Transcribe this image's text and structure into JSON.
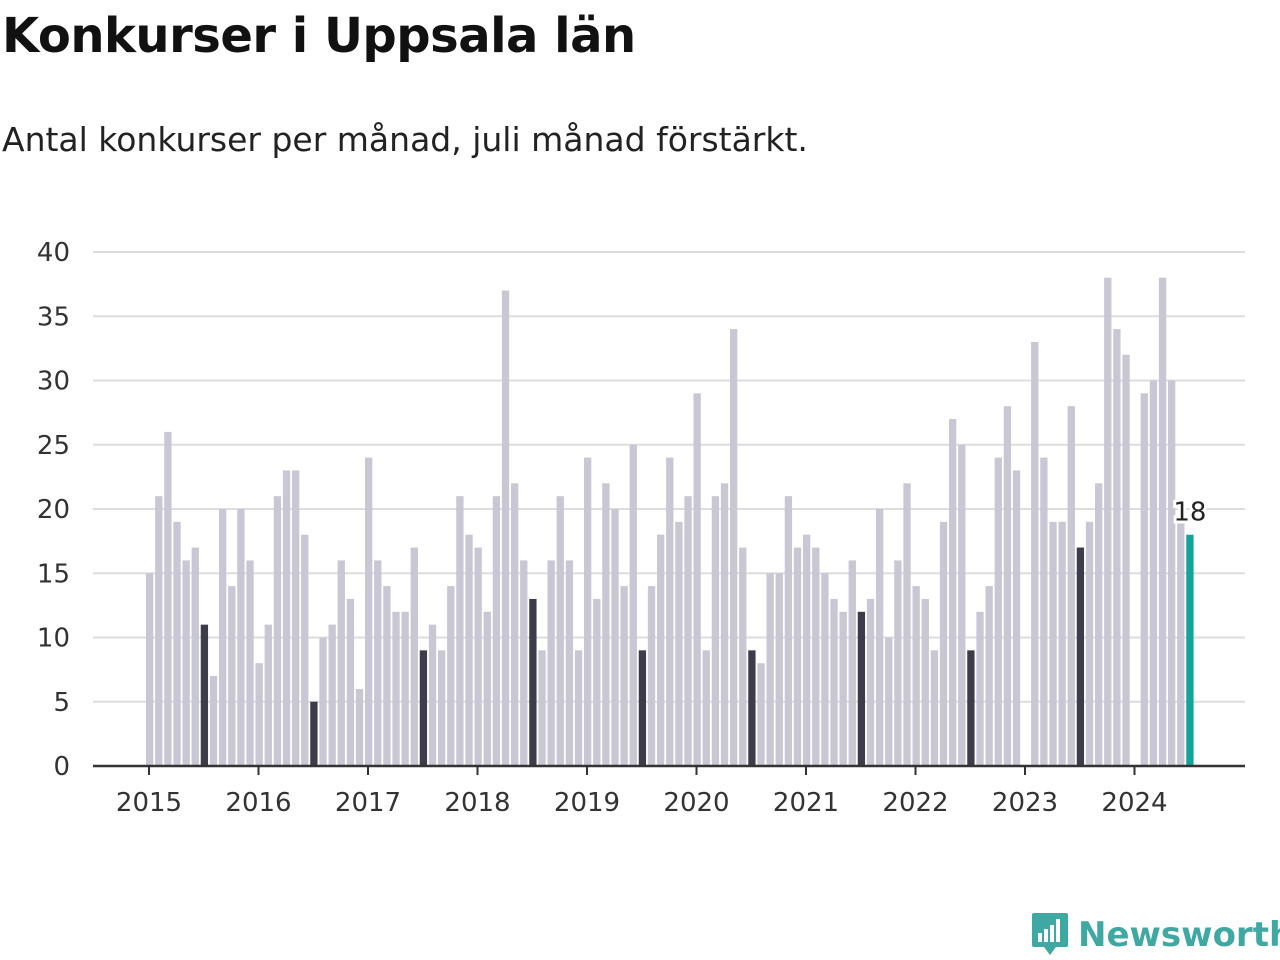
{
  "chart_data": {
    "type": "bar",
    "title": "Konkurser i Uppsala län",
    "subtitle": "Antal konkurser per månad, juli månad förstärkt.",
    "ylim": [
      0,
      40
    ],
    "yticks": [
      0,
      5,
      10,
      15,
      20,
      25,
      30,
      35,
      40
    ],
    "xticks": [
      "2015",
      "2016",
      "2017",
      "2018",
      "2019",
      "2020",
      "2021",
      "2022",
      "2023",
      "2024"
    ],
    "start": "2015-01",
    "grid": true,
    "highlight_month": "juli",
    "colors": {
      "default": "#c8c7d3",
      "july": "#3d3c4a",
      "latest": "#12a39a",
      "grid": "#dddddd",
      "axis": "#333333"
    },
    "values": [
      15,
      21,
      26,
      19,
      16,
      17,
      11,
      7,
      20,
      14,
      20,
      16,
      8,
      11,
      21,
      23,
      23,
      18,
      5,
      10,
      11,
      16,
      13,
      6,
      24,
      16,
      14,
      12,
      12,
      17,
      9,
      11,
      9,
      14,
      21,
      18,
      17,
      12,
      21,
      37,
      22,
      16,
      13,
      9,
      16,
      21,
      16,
      9,
      24,
      13,
      22,
      20,
      14,
      25,
      9,
      14,
      18,
      24,
      19,
      21,
      29,
      9,
      21,
      22,
      34,
      17,
      9,
      8,
      15,
      15,
      21,
      17,
      18,
      17,
      15,
      13,
      12,
      16,
      12,
      13,
      20,
      10,
      16,
      22,
      14,
      13,
      9,
      19,
      27,
      25,
      9,
      12,
      14,
      24,
      28,
      23,
      0,
      33,
      24,
      19,
      19,
      28,
      17,
      19,
      22,
      38,
      34,
      32,
      0,
      29,
      30,
      38,
      30,
      19,
      18
    ],
    "last_label": "18"
  },
  "brand": {
    "name": "Newsworthy",
    "icon": "chart-bubble-icon",
    "color": "#3fa8a2"
  }
}
